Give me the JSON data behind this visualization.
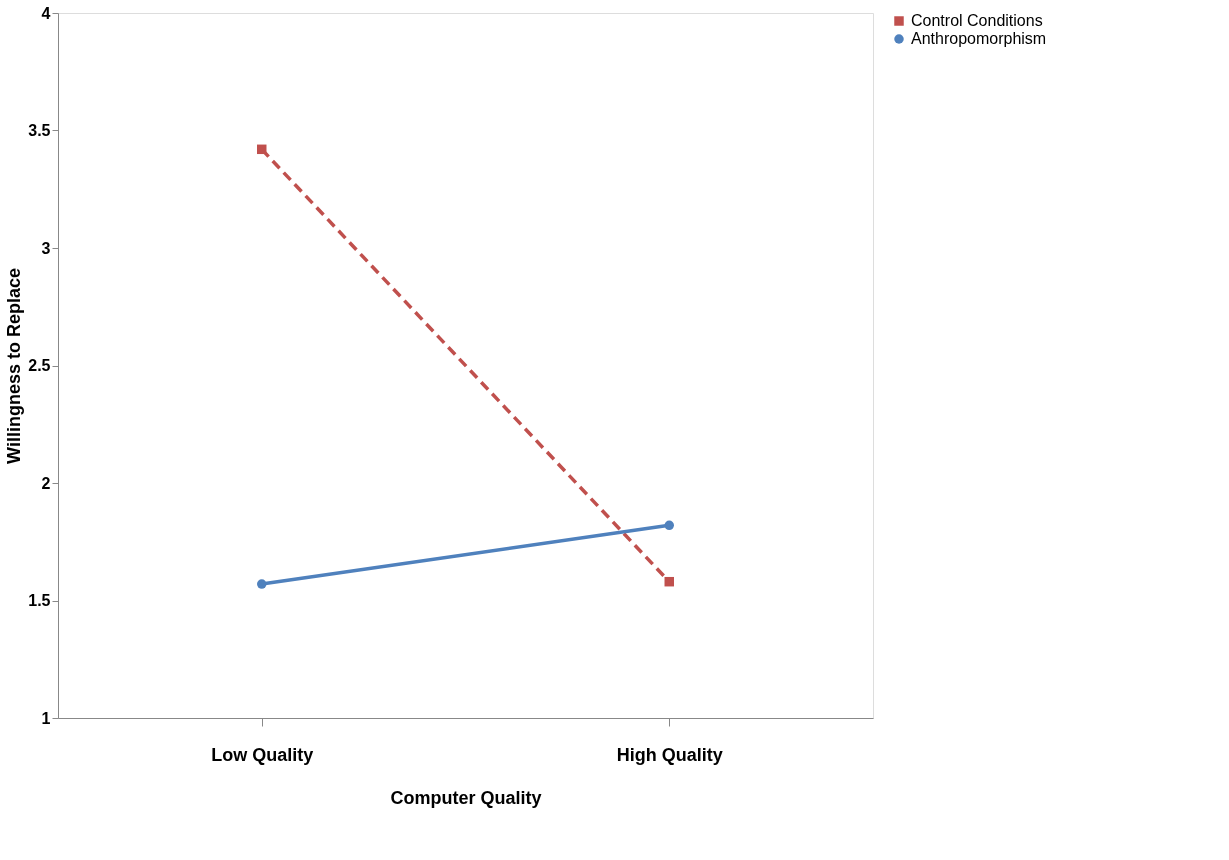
{
  "chart_data": {
    "type": "line",
    "xlabel": "Computer   Quality",
    "ylabel": "Willingness to Replace",
    "categories": [
      "Low Quality",
      "High Quality"
    ],
    "series": [
      {
        "name": "Control Conditions",
        "color": "#c0504d",
        "values": [
          3.42,
          1.58
        ],
        "marker": "square",
        "line_style": "dashed"
      },
      {
        "name": "Anthropomorphism",
        "color": "#4f81bd",
        "values": [
          1.57,
          1.82
        ],
        "marker": "circle",
        "line_style": "solid"
      }
    ],
    "ylim": [
      1,
      4
    ],
    "yticks": [
      1,
      1.5,
      2,
      2.5,
      3,
      3.5,
      4
    ],
    "grid": false,
    "legend": "right"
  }
}
